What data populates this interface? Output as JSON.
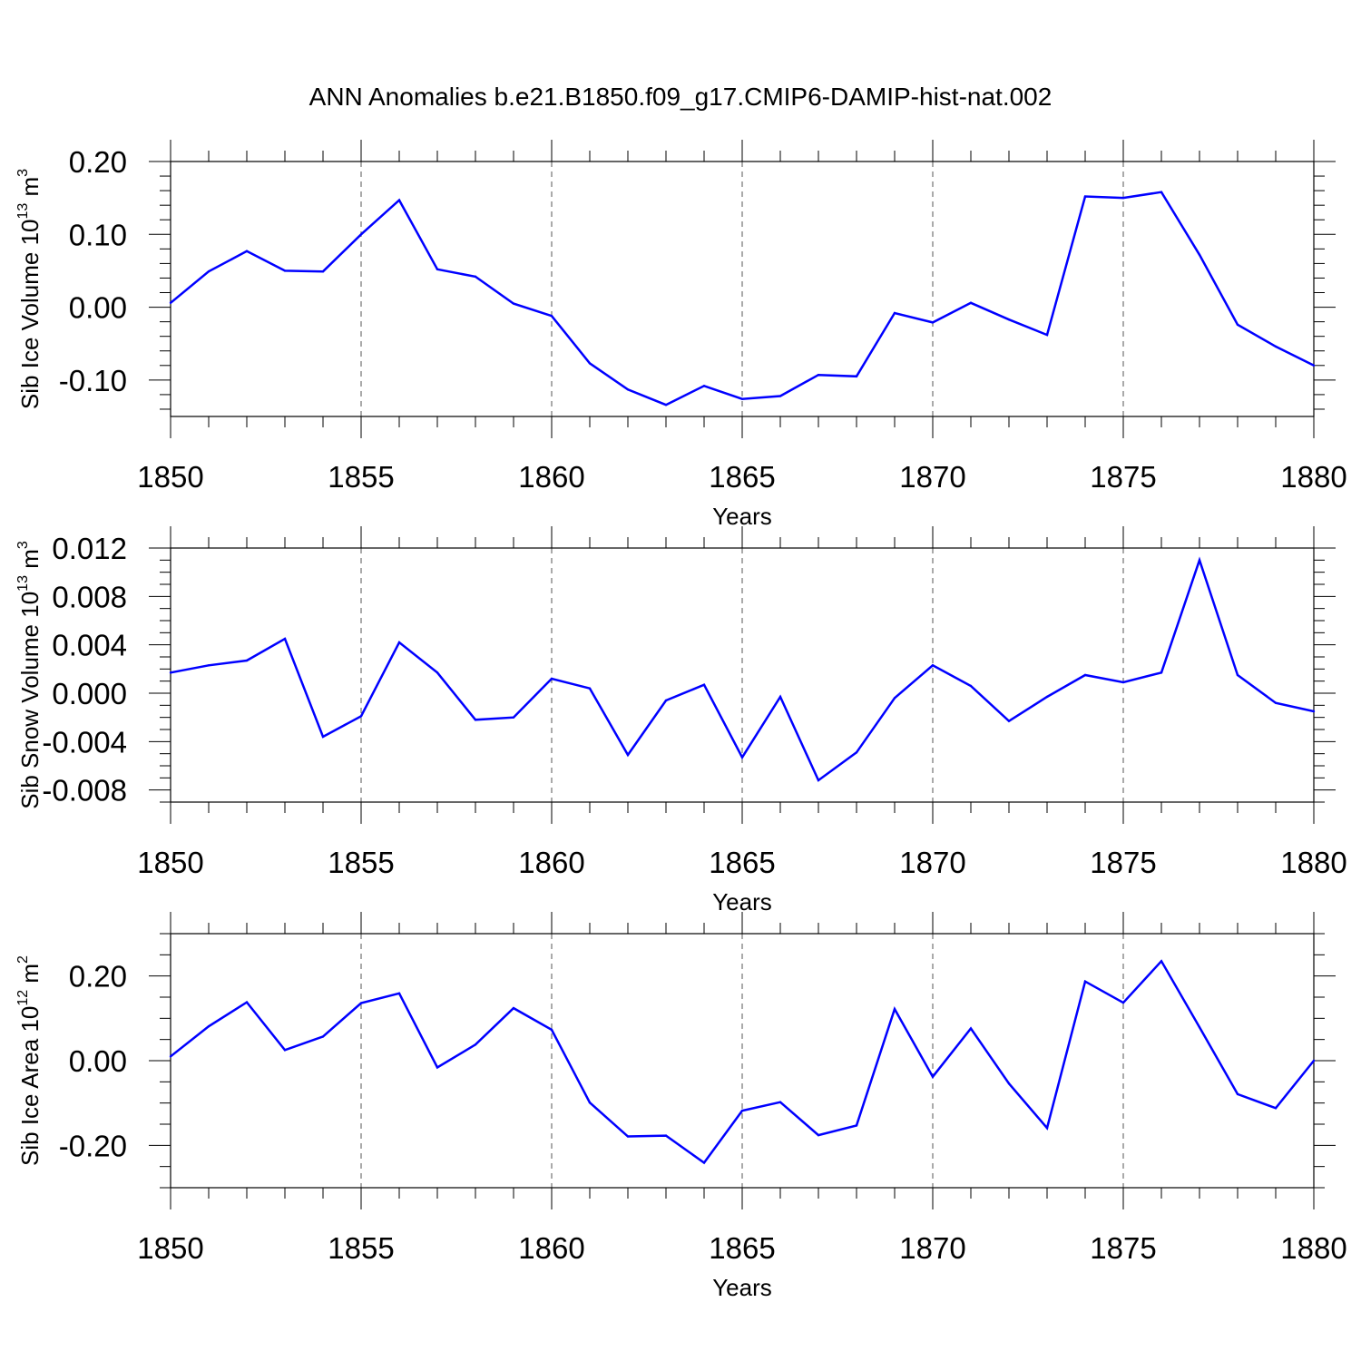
{
  "figure_title": "ANN Anomalies b.e21.B1850.f09_g17.CMIP6-DAMIP-hist-nat.002",
  "chart_data": [
    {
      "type": "line",
      "title": "ANN Anomalies b.e21.B1850.f09_g17.CMIP6-DAMIP-hist-nat.002",
      "xlabel": "Years",
      "ylabel": {
        "main": "Sib Ice Volume 10",
        "exp": "13",
        "unit": " m",
        "unit_exp": "3"
      },
      "xlim": [
        1850,
        1880
      ],
      "ylim": [
        -0.15,
        0.2
      ],
      "x_ticks": [
        1850,
        1855,
        1860,
        1865,
        1870,
        1875,
        1880
      ],
      "x_tick_labels": [
        "1850",
        "1855",
        "1860",
        "1865",
        "1870",
        "1875",
        "1880"
      ],
      "y_ticks": [
        -0.1,
        0.0,
        0.1,
        0.2
      ],
      "y_tick_labels": [
        "-0.10",
        "0.00",
        "0.10",
        "0.20"
      ],
      "y_minor_step": 0.02,
      "grid": "vertical dashed at major x ticks",
      "series_color": "#0000ff",
      "x": [
        1850,
        1851,
        1852,
        1853,
        1854,
        1855,
        1856,
        1857,
        1858,
        1859,
        1860,
        1861,
        1862,
        1863,
        1864,
        1865,
        1866,
        1867,
        1868,
        1869,
        1870,
        1871,
        1872,
        1873,
        1874,
        1875,
        1876,
        1877,
        1878,
        1879,
        1880
      ],
      "values": [
        0.006,
        0.049,
        0.077,
        0.05,
        0.049,
        0.1,
        0.147,
        0.052,
        0.042,
        0.005,
        -0.012,
        -0.077,
        -0.113,
        -0.134,
        -0.108,
        -0.126,
        -0.122,
        -0.093,
        -0.095,
        -0.008,
        -0.021,
        0.006,
        -0.017,
        -0.038,
        0.152,
        0.15,
        0.158,
        0.072,
        -0.024,
        -0.054,
        -0.08
      ]
    },
    {
      "type": "line",
      "xlabel": "Years",
      "ylabel": {
        "main": "Sib Snow Volume 10",
        "exp": "13",
        "unit": " m",
        "unit_exp": "3"
      },
      "xlim": [
        1850,
        1880
      ],
      "ylim": [
        -0.009,
        0.012
      ],
      "x_ticks": [
        1850,
        1855,
        1860,
        1865,
        1870,
        1875,
        1880
      ],
      "x_tick_labels": [
        "1850",
        "1855",
        "1860",
        "1865",
        "1870",
        "1875",
        "1880"
      ],
      "y_ticks": [
        -0.008,
        -0.004,
        0.0,
        0.004,
        0.008,
        0.012
      ],
      "y_tick_labels": [
        "-0.008",
        "-0.004",
        "0.000",
        "0.004",
        "0.008",
        "0.012"
      ],
      "y_minor_step": 0.001,
      "grid": "vertical dashed at major x ticks",
      "series_color": "#0000ff",
      "x": [
        1850,
        1851,
        1852,
        1853,
        1854,
        1855,
        1856,
        1857,
        1858,
        1859,
        1860,
        1861,
        1862,
        1863,
        1864,
        1865,
        1866,
        1867,
        1868,
        1869,
        1870,
        1871,
        1872,
        1873,
        1874,
        1875,
        1876,
        1877,
        1878,
        1879,
        1880
      ],
      "values": [
        0.0017,
        0.0023,
        0.0027,
        0.0045,
        -0.0036,
        -0.0019,
        0.0042,
        0.0017,
        -0.0022,
        -0.002,
        0.0012,
        0.0004,
        -0.0051,
        -0.0006,
        0.0007,
        -0.0053,
        -0.0003,
        -0.0072,
        -0.0049,
        -0.0004,
        0.0023,
        0.0006,
        -0.0023,
        -0.0003,
        0.0015,
        0.0009,
        0.0017,
        0.011,
        0.0015,
        -0.0008,
        -0.0015
      ]
    },
    {
      "type": "line",
      "xlabel": "Years",
      "ylabel": {
        "main": "Sib Ice Area 10",
        "exp": "12",
        "unit": " m",
        "unit_exp": "2"
      },
      "xlim": [
        1850,
        1880
      ],
      "ylim": [
        -0.3,
        0.3
      ],
      "x_ticks": [
        1850,
        1855,
        1860,
        1865,
        1870,
        1875,
        1880
      ],
      "x_tick_labels": [
        "1850",
        "1855",
        "1860",
        "1865",
        "1870",
        "1875",
        "1880"
      ],
      "y_ticks": [
        -0.2,
        0.0,
        0.2
      ],
      "y_tick_labels": [
        "-0.20",
        "0.00",
        "0.20"
      ],
      "y_minor_step": 0.05,
      "grid": "vertical dashed at major x ticks",
      "series_color": "#0000ff",
      "x": [
        1850,
        1851,
        1852,
        1853,
        1854,
        1855,
        1856,
        1857,
        1858,
        1859,
        1860,
        1861,
        1862,
        1863,
        1864,
        1865,
        1866,
        1867,
        1868,
        1869,
        1870,
        1871,
        1872,
        1873,
        1874,
        1875,
        1876,
        1877,
        1878,
        1879,
        1880
      ],
      "values": [
        0.01,
        0.081,
        0.138,
        0.025,
        0.057,
        0.136,
        0.159,
        -0.016,
        0.038,
        0.124,
        0.073,
        -0.099,
        -0.179,
        -0.177,
        -0.241,
        -0.118,
        -0.098,
        -0.176,
        -0.153,
        0.122,
        -0.038,
        0.076,
        -0.054,
        -0.159,
        0.187,
        0.137,
        0.235,
        0.079,
        -0.079,
        -0.112,
        0.0
      ]
    }
  ]
}
